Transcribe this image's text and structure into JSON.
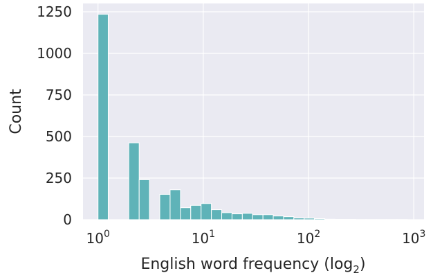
{
  "chart_data": {
    "type": "bar",
    "xlabel": "English word frequency (log",
    "xlabel_subscript": "2",
    "xlabel_suffix": ")",
    "ylabel": "Count",
    "x_scale": "log10",
    "xlim": [
      0.72,
      1250
    ],
    "ylim": [
      0,
      1300
    ],
    "x_ticks": [
      {
        "base": "10",
        "exp": "0",
        "value": 1
      },
      {
        "base": "10",
        "exp": "1",
        "value": 10
      },
      {
        "base": "10",
        "exp": "2",
        "value": 100
      },
      {
        "base": "10",
        "exp": "3",
        "value": 1000
      }
    ],
    "y_ticks": [
      {
        "label": "0",
        "value": 0
      },
      {
        "label": "250",
        "value": 250
      },
      {
        "label": "500",
        "value": 500
      },
      {
        "label": "750",
        "value": 750
      },
      {
        "label": "1000",
        "value": 1000
      },
      {
        "label": "1250",
        "value": 1250
      }
    ],
    "grid": true,
    "background_color": "#eaeaf2",
    "grid_color": "#ffffff",
    "bar_color": "#5fb3b8",
    "bar_edge_color": "#ffffff",
    "bins": [
      {
        "x0": 1.0,
        "x1": 1.25,
        "count": 1235
      },
      {
        "x0": 1.25,
        "x1": 1.57,
        "count": 0
      },
      {
        "x0": 1.57,
        "x1": 1.96,
        "count": 0
      },
      {
        "x0": 1.96,
        "x1": 2.46,
        "count": 462
      },
      {
        "x0": 2.46,
        "x1": 3.08,
        "count": 240
      },
      {
        "x0": 3.08,
        "x1": 3.86,
        "count": 0
      },
      {
        "x0": 3.86,
        "x1": 4.84,
        "count": 152
      },
      {
        "x0": 4.84,
        "x1": 6.07,
        "count": 180
      },
      {
        "x0": 6.07,
        "x1": 7.6,
        "count": 72
      },
      {
        "x0": 7.6,
        "x1": 9.53,
        "count": 86
      },
      {
        "x0": 9.53,
        "x1": 11.94,
        "count": 97
      },
      {
        "x0": 11.94,
        "x1": 14.96,
        "count": 60
      },
      {
        "x0": 14.96,
        "x1": 18.75,
        "count": 42
      },
      {
        "x0": 18.75,
        "x1": 23.5,
        "count": 35
      },
      {
        "x0": 23.5,
        "x1": 29.4,
        "count": 38
      },
      {
        "x0": 29.4,
        "x1": 36.9,
        "count": 30
      },
      {
        "x0": 36.9,
        "x1": 46.2,
        "count": 30
      },
      {
        "x0": 46.2,
        "x1": 57.9,
        "count": 22
      },
      {
        "x0": 57.9,
        "x1": 72.5,
        "count": 18
      },
      {
        "x0": 72.5,
        "x1": 90.9,
        "count": 10
      },
      {
        "x0": 90.9,
        "x1": 113.9,
        "count": 9
      },
      {
        "x0": 113.9,
        "x1": 142.7,
        "count": 6
      },
      {
        "x0": 142.7,
        "x1": 178.8,
        "count": 3
      },
      {
        "x0": 178.8,
        "x1": 224.0,
        "count": 2
      },
      {
        "x0": 224.0,
        "x1": 280.7,
        "count": 2
      },
      {
        "x0": 280.7,
        "x1": 351.7,
        "count": 1
      },
      {
        "x0": 351.7,
        "x1": 440.7,
        "count": 1
      },
      {
        "x0": 440.7,
        "x1": 552.2,
        "count": 1
      },
      {
        "x0": 552.2,
        "x1": 691.9,
        "count": 1
      },
      {
        "x0": 691.9,
        "x1": 866.9,
        "count": 1
      }
    ]
  }
}
